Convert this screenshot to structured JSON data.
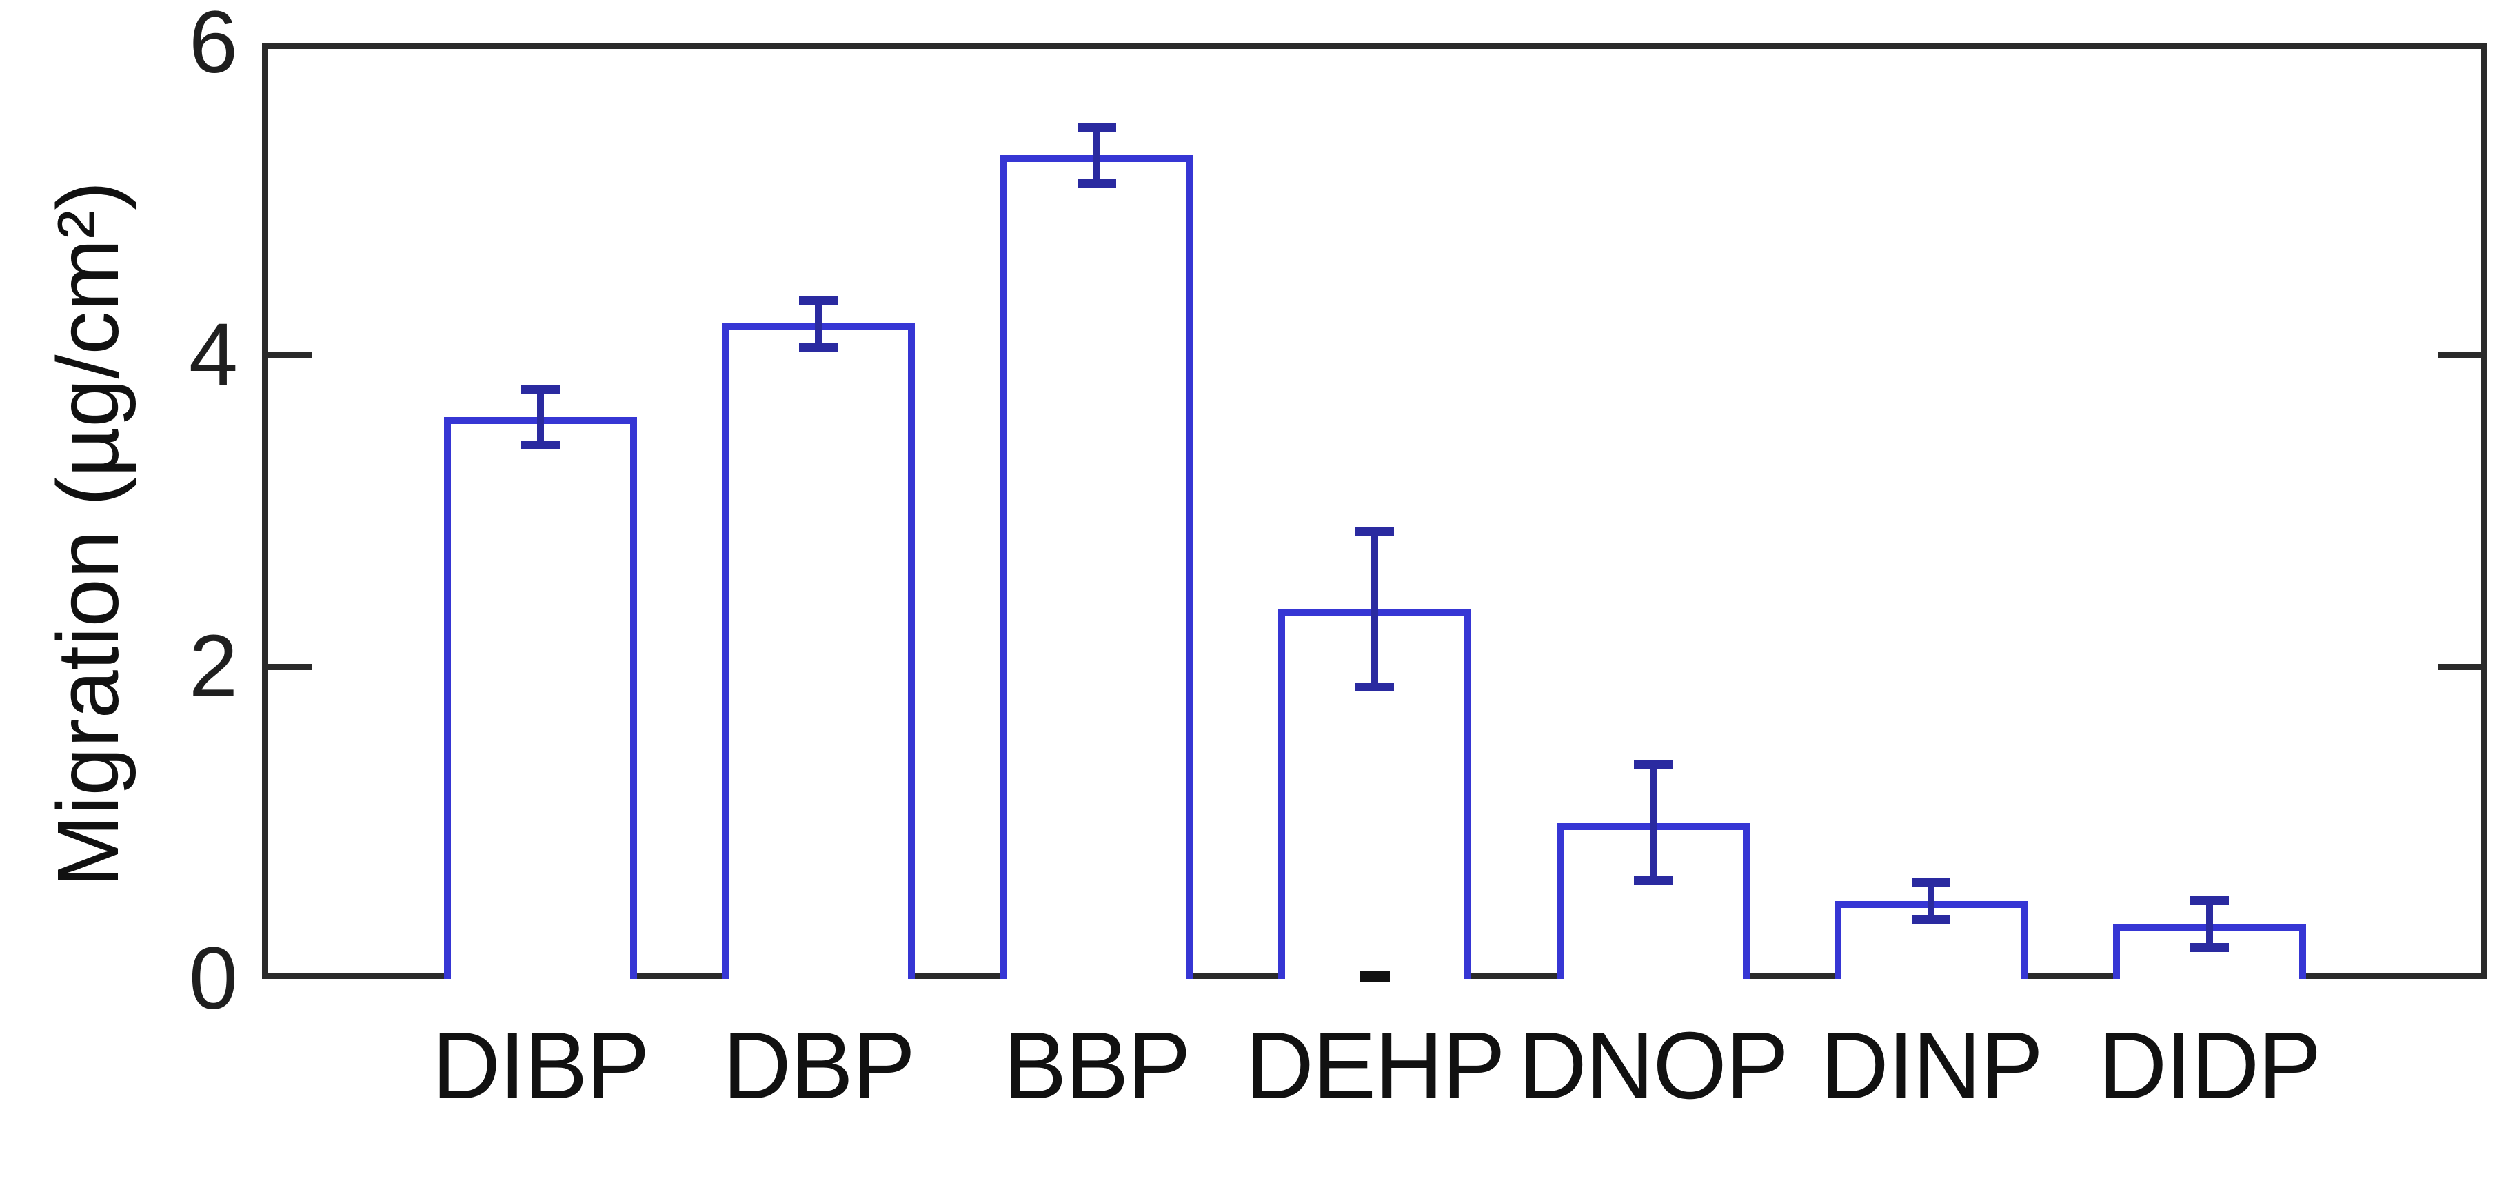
{
  "chart_data": {
    "type": "bar",
    "title": "",
    "ylabel": "Migration (µg/cm²)",
    "xlabel": "",
    "categories": [
      "DIBP",
      "DBP",
      "BBP",
      "DEHP",
      "DNOP",
      "DINP",
      "DIDP"
    ],
    "values": [
      3.6,
      4.2,
      5.28,
      2.37,
      1.0,
      0.5,
      0.35
    ],
    "errors": [
      0.18,
      0.15,
      0.18,
      0.5,
      0.37,
      0.12,
      0.15
    ],
    "ylim": [
      0,
      6
    ],
    "yticks_labeled": [
      0,
      2,
      4,
      6
    ],
    "ytick_labels": [
      "0",
      "2",
      "4",
      "6"
    ],
    "yticks_inner_marks": [
      2,
      4
    ],
    "grid": false,
    "legend": "none",
    "bar_fill": "#ffffff",
    "bar_outline": "#3636d4",
    "error_color": "#2a2aa0",
    "axis_color": "#2a2a2a",
    "text_color": "#111111"
  }
}
